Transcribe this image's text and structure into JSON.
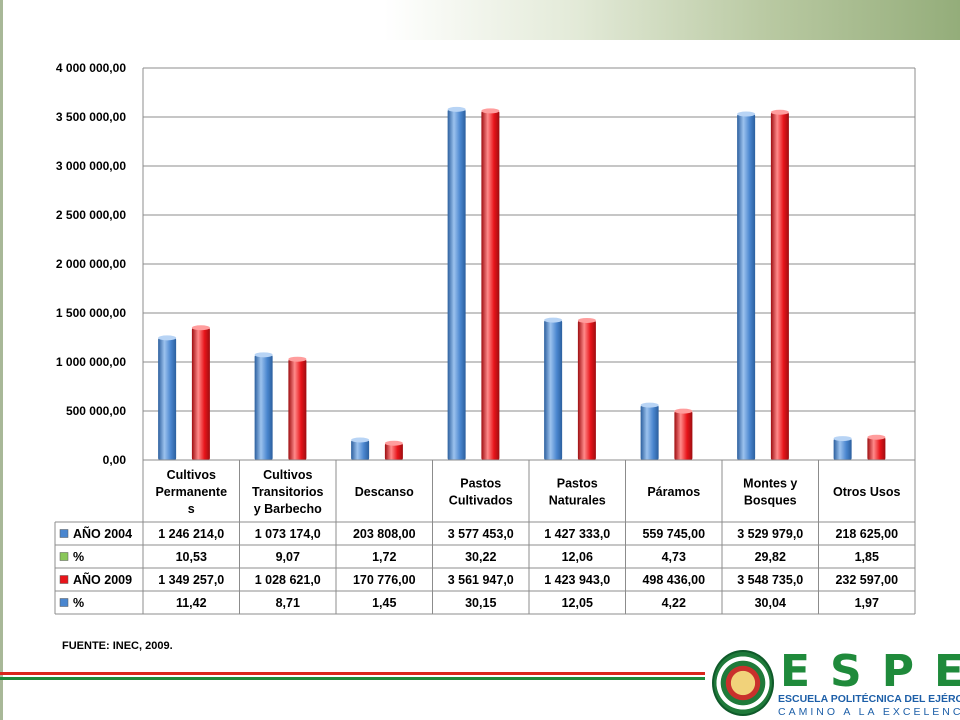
{
  "source": "FUENTE: INEC, 2009.",
  "logo": {
    "word": "ESPE",
    "line1": "ESCUELA POLITÉCNICA DEL EJÉRCITO",
    "line2": "CAMINO A LA EXCELENCIA"
  },
  "colors": {
    "series_2004": "#4a86cf",
    "series_2009": "#e8141a",
    "legend_pct_2004": "#8ac75a",
    "legend_pct_2009": "#4a86cf"
  },
  "chart_data": {
    "type": "bar",
    "title": "",
    "xlabel": "",
    "ylabel": "",
    "ylim": [
      0,
      4000000
    ],
    "yticks": [
      0,
      500000,
      1000000,
      1500000,
      2000000,
      2500000,
      3000000,
      3500000,
      4000000
    ],
    "ytick_labels": [
      "0,00",
      "500 000,00",
      "1 000 000,00",
      "1 500 000,00",
      "2 000 000,00",
      "2 500 000,00",
      "3 000 000,00",
      "3 500 000,00",
      "4 000 000,00"
    ],
    "grid": true,
    "legend": "data-table",
    "categories": [
      [
        "Cultivos",
        "Permanente",
        "s"
      ],
      [
        "Cultivos",
        "Transitorios",
        "y Barbecho"
      ],
      [
        "Descanso"
      ],
      [
        "Pastos",
        "Cultivados"
      ],
      [
        "Pastos",
        "Naturales"
      ],
      [
        "Páramos"
      ],
      [
        "Montes y",
        "Bosques"
      ],
      [
        "Otros Usos"
      ]
    ],
    "series": [
      {
        "name": "AÑO 2004",
        "values": [
          1246214.0,
          1073174.0,
          203808.0,
          3577453.0,
          1427333.0,
          559745.0,
          3529979.0,
          218625.0
        ]
      },
      {
        "name": "AÑO 2009",
        "values": [
          1349257.0,
          1028621.0,
          170776.0,
          3561947.0,
          1423943.0,
          498436.0,
          3548735.0,
          232597.0
        ]
      }
    ],
    "table_rows": [
      {
        "label": "AÑO 2004",
        "swatch": "series_2004",
        "cells": [
          "1 246 214,0",
          "1 073 174,0",
          "203 808,00",
          "3 577 453,0",
          "1 427 333,0",
          "559 745,00",
          "3 529 979,0",
          "218 625,00"
        ]
      },
      {
        "label": "%",
        "swatch": "legend_pct_2004",
        "cells": [
          "10,53",
          "9,07",
          "1,72",
          "30,22",
          "12,06",
          "4,73",
          "29,82",
          "1,85"
        ]
      },
      {
        "label": "AÑO 2009",
        "swatch": "series_2009",
        "cells": [
          "1 349 257,0",
          "1 028 621,0",
          "170 776,00",
          "3 561 947,0",
          "1 423 943,0",
          "498 436,00",
          "3 548 735,0",
          "232 597,00"
        ]
      },
      {
        "label": "%",
        "swatch": "legend_pct_2009",
        "cells": [
          "11,42",
          "8,71",
          "1,45",
          "30,15",
          "12,05",
          "4,22",
          "30,04",
          "1,97"
        ]
      }
    ]
  }
}
